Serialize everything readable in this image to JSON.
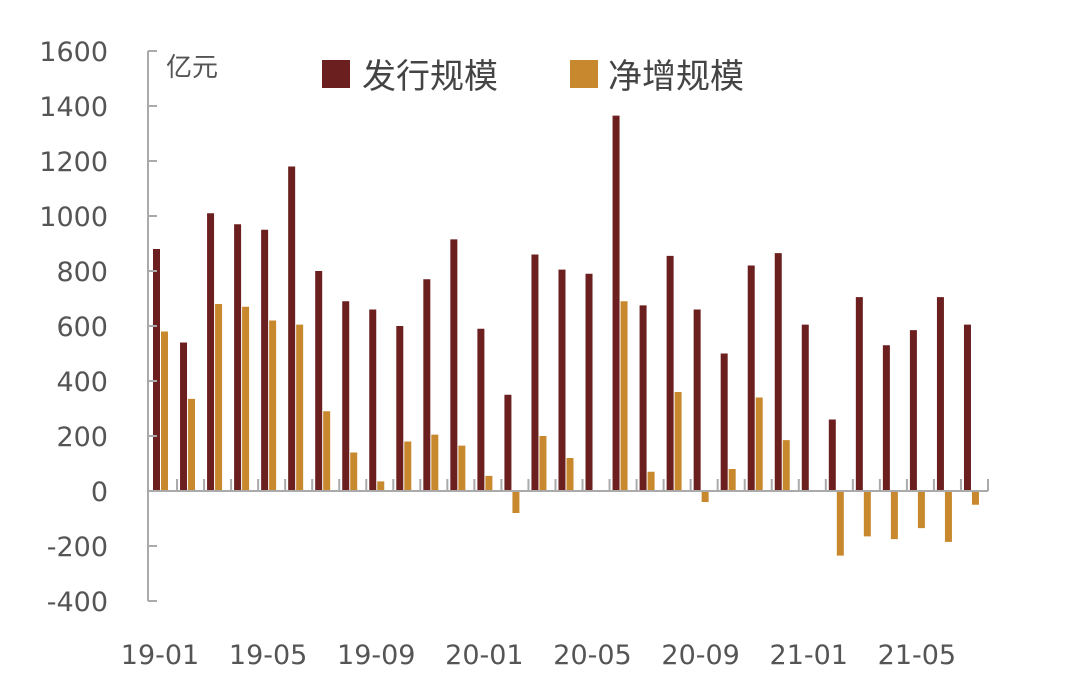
{
  "chart_data": {
    "type": "bar",
    "unit": "亿元",
    "categories": [
      "19-01",
      "19-02",
      "19-03",
      "19-04",
      "19-05",
      "19-06",
      "19-07",
      "19-08",
      "19-09",
      "19-10",
      "19-11",
      "19-12",
      "20-01",
      "20-02",
      "20-03",
      "20-04",
      "20-05",
      "20-06",
      "20-07",
      "20-08",
      "20-09",
      "20-10",
      "20-11",
      "20-12",
      "21-01",
      "21-02",
      "21-03",
      "21-04",
      "21-05",
      "21-06",
      "21-07"
    ],
    "x_tick_labels": [
      "19-01",
      "19-05",
      "19-09",
      "20-01",
      "20-05",
      "20-09",
      "21-01",
      "21-05"
    ],
    "series": [
      {
        "name": "发行规模",
        "color": "#6b1f1f",
        "values": [
          880,
          540,
          1010,
          970,
          950,
          1180,
          800,
          690,
          660,
          600,
          770,
          915,
          590,
          350,
          860,
          805,
          790,
          1365,
          675,
          855,
          660,
          500,
          820,
          865,
          605,
          260,
          705,
          530,
          585,
          705,
          605
        ]
      },
      {
        "name": "净增规模",
        "color": "#c8882e",
        "values": [
          580,
          335,
          680,
          670,
          620,
          605,
          290,
          140,
          35,
          180,
          205,
          165,
          55,
          -80,
          200,
          120,
          0,
          690,
          70,
          360,
          -40,
          80,
          340,
          185,
          0,
          -235,
          -165,
          -175,
          -135,
          -185,
          -50
        ]
      }
    ],
    "ylim": [
      -400,
      1600
    ],
    "yticks": [
      -400,
      -200,
      0,
      200,
      400,
      600,
      800,
      1000,
      1200,
      1400,
      1600
    ],
    "legend_position": "top",
    "grid": false
  }
}
